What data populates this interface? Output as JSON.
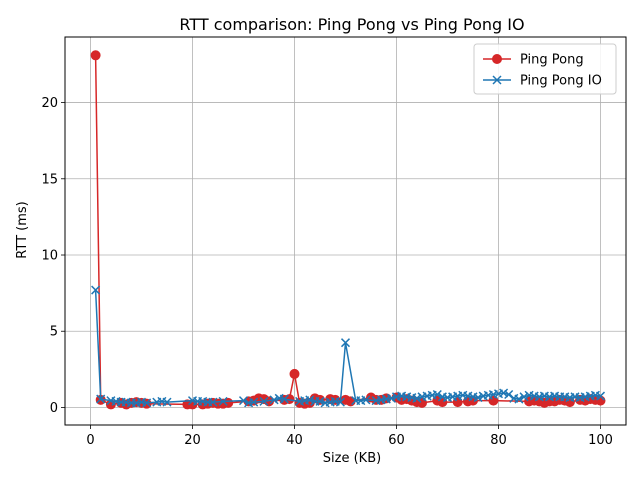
{
  "chart_data": {
    "type": "line",
    "title": "RTT comparison: Ping Pong vs Ping Pong IO",
    "xlabel": "Size (KB)",
    "ylabel": "RTT (ms)",
    "xlim": [
      -5,
      105
    ],
    "ylim": [
      -1.15,
      24.3
    ],
    "xticks": [
      0,
      20,
      40,
      60,
      80,
      100
    ],
    "yticks": [
      0,
      5,
      10,
      15,
      20
    ],
    "grid": true,
    "legend_position": "top-right",
    "series": [
      {
        "name": "Ping Pong",
        "color": "#d62728",
        "marker": "circle",
        "points": [
          [
            1,
            23.1
          ],
          [
            2,
            0.5
          ],
          [
            4,
            0.2
          ],
          [
            6,
            0.3
          ],
          [
            7,
            0.2
          ],
          [
            8,
            0.3
          ],
          [
            9,
            0.35
          ],
          [
            10,
            0.3
          ],
          [
            11,
            0.25
          ],
          [
            19,
            0.2
          ],
          [
            20,
            0.2
          ],
          [
            22,
            0.2
          ],
          [
            23,
            0.25
          ],
          [
            24,
            0.3
          ],
          [
            25,
            0.25
          ],
          [
            26,
            0.25
          ],
          [
            27,
            0.3
          ],
          [
            31,
            0.4
          ],
          [
            32,
            0.45
          ],
          [
            33,
            0.6
          ],
          [
            34,
            0.55
          ],
          [
            35,
            0.4
          ],
          [
            38,
            0.5
          ],
          [
            39,
            0.55
          ],
          [
            40,
            2.2
          ],
          [
            41,
            0.3
          ],
          [
            42,
            0.25
          ],
          [
            43,
            0.3
          ],
          [
            44,
            0.6
          ],
          [
            45,
            0.5
          ],
          [
            47,
            0.55
          ],
          [
            48,
            0.5
          ],
          [
            50,
            0.5
          ],
          [
            51,
            0.4
          ],
          [
            55,
            0.65
          ],
          [
            56,
            0.5
          ],
          [
            57,
            0.5
          ],
          [
            58,
            0.6
          ],
          [
            60,
            0.65
          ],
          [
            61,
            0.5
          ],
          [
            62,
            0.55
          ],
          [
            63,
            0.45
          ],
          [
            64,
            0.35
          ],
          [
            65,
            0.3
          ],
          [
            68,
            0.45
          ],
          [
            69,
            0.35
          ],
          [
            72,
            0.35
          ],
          [
            74,
            0.4
          ],
          [
            75,
            0.45
          ],
          [
            79,
            0.45
          ],
          [
            86,
            0.4
          ],
          [
            87,
            0.45
          ],
          [
            88,
            0.4
          ],
          [
            89,
            0.3
          ],
          [
            90,
            0.4
          ],
          [
            91,
            0.4
          ],
          [
            92,
            0.5
          ],
          [
            93,
            0.45
          ],
          [
            94,
            0.35
          ],
          [
            96,
            0.5
          ],
          [
            97,
            0.45
          ],
          [
            98,
            0.55
          ],
          [
            99,
            0.5
          ],
          [
            100,
            0.45
          ]
        ]
      },
      {
        "name": "Ping Pong IO",
        "color": "#1f77b4",
        "marker": "x",
        "points": [
          [
            1,
            7.7
          ],
          [
            2,
            0.55
          ],
          [
            4,
            0.45
          ],
          [
            5,
            0.4
          ],
          [
            6,
            0.35
          ],
          [
            7,
            0.35
          ],
          [
            8,
            0.3
          ],
          [
            9,
            0.3
          ],
          [
            10,
            0.35
          ],
          [
            11,
            0.3
          ],
          [
            13,
            0.35
          ],
          [
            14,
            0.4
          ],
          [
            15,
            0.35
          ],
          [
            20,
            0.45
          ],
          [
            21,
            0.4
          ],
          [
            22,
            0.4
          ],
          [
            23,
            0.35
          ],
          [
            24,
            0.35
          ],
          [
            26,
            0.4
          ],
          [
            30,
            0.45
          ],
          [
            31,
            0.3
          ],
          [
            32,
            0.35
          ],
          [
            34,
            0.4
          ],
          [
            36,
            0.5
          ],
          [
            37,
            0.6
          ],
          [
            38,
            0.55
          ],
          [
            41,
            0.4
          ],
          [
            42,
            0.45
          ],
          [
            43,
            0.5
          ],
          [
            44,
            0.4
          ],
          [
            45,
            0.4
          ],
          [
            46,
            0.3
          ],
          [
            47,
            0.35
          ],
          [
            48,
            0.4
          ],
          [
            49,
            0.35
          ],
          [
            50,
            4.25
          ],
          [
            52,
            0.45
          ],
          [
            53,
            0.45
          ],
          [
            54,
            0.5
          ],
          [
            56,
            0.45
          ],
          [
            57,
            0.5
          ],
          [
            58,
            0.55
          ],
          [
            59,
            0.6
          ],
          [
            60,
            0.7
          ],
          [
            61,
            0.75
          ],
          [
            62,
            0.7
          ],
          [
            63,
            0.65
          ],
          [
            64,
            0.6
          ],
          [
            65,
            0.7
          ],
          [
            66,
            0.75
          ],
          [
            67,
            0.8
          ],
          [
            68,
            0.85
          ],
          [
            69,
            0.7
          ],
          [
            70,
            0.65
          ],
          [
            71,
            0.7
          ],
          [
            72,
            0.75
          ],
          [
            73,
            0.8
          ],
          [
            74,
            0.75
          ],
          [
            75,
            0.7
          ],
          [
            76,
            0.65
          ],
          [
            77,
            0.75
          ],
          [
            78,
            0.8
          ],
          [
            79,
            0.85
          ],
          [
            80,
            0.9
          ],
          [
            81,
            0.95
          ],
          [
            82,
            0.85
          ],
          [
            83,
            0.6
          ],
          [
            84,
            0.55
          ],
          [
            85,
            0.7
          ],
          [
            86,
            0.8
          ],
          [
            87,
            0.75
          ],
          [
            88,
            0.7
          ],
          [
            89,
            0.75
          ],
          [
            90,
            0.7
          ],
          [
            91,
            0.75
          ],
          [
            92,
            0.7
          ],
          [
            93,
            0.7
          ],
          [
            94,
            0.65
          ],
          [
            95,
            0.7
          ],
          [
            96,
            0.65
          ],
          [
            97,
            0.7
          ],
          [
            98,
            0.75
          ],
          [
            99,
            0.8
          ],
          [
            100,
            0.75
          ]
        ]
      }
    ]
  }
}
